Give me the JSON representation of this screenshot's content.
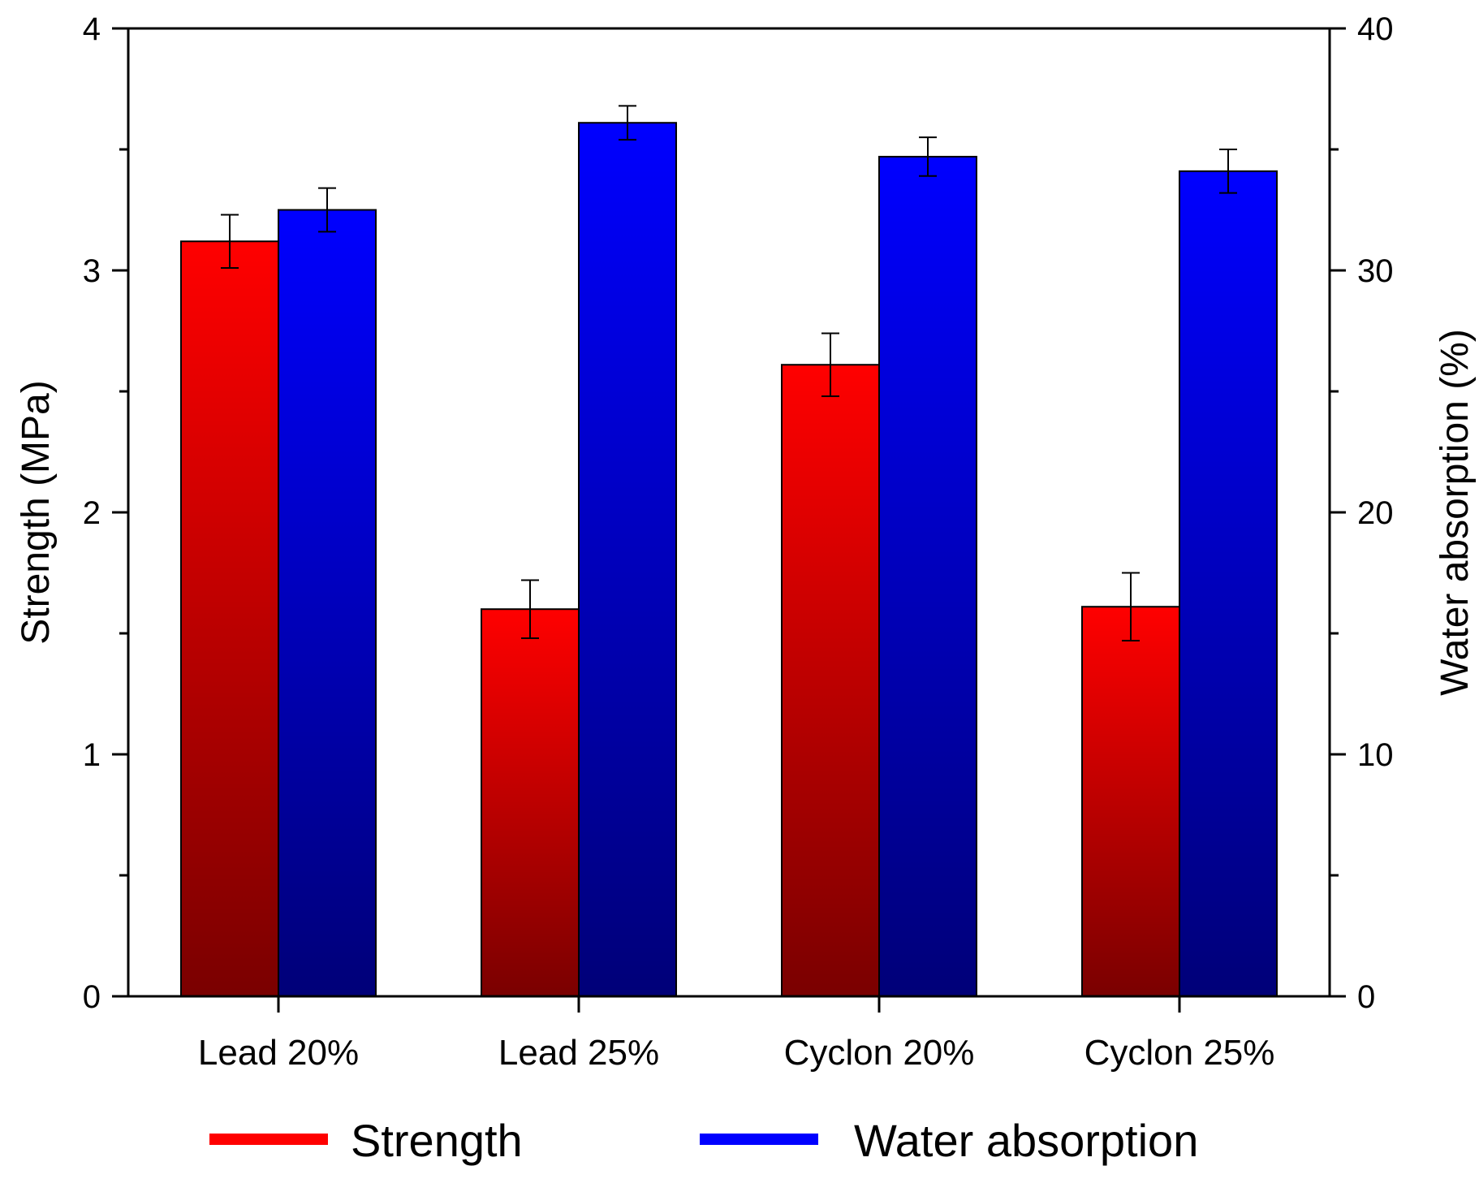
{
  "chart_data": {
    "type": "bar",
    "title": "",
    "xlabel": "",
    "ylabel": "Strength (MPa)",
    "y2label": "Water absorption (%)",
    "categories": [
      "Lead 20%",
      "Lead 25%",
      "Cyclon 20%",
      "Cyclon 25%"
    ],
    "ylim": [
      0,
      4
    ],
    "y2lim": [
      0,
      40
    ],
    "yticks": [
      0,
      1,
      2,
      3,
      4
    ],
    "y2ticks": [
      0,
      10,
      20,
      30,
      40
    ],
    "legend_position": "bottom",
    "series": [
      {
        "name": "Strength",
        "axis": "left",
        "values": [
          3.12,
          1.6,
          2.61,
          1.61
        ],
        "errors": [
          0.11,
          0.12,
          0.13,
          0.14
        ],
        "color": "#ff0000",
        "color_dark": "#7a0000"
      },
      {
        "name": "Water absorption",
        "axis": "right",
        "values": [
          32.5,
          36.1,
          34.7,
          34.1
        ],
        "errors": [
          0.9,
          0.7,
          0.8,
          0.9
        ],
        "color": "#0000ff",
        "color_dark": "#000078"
      }
    ]
  }
}
